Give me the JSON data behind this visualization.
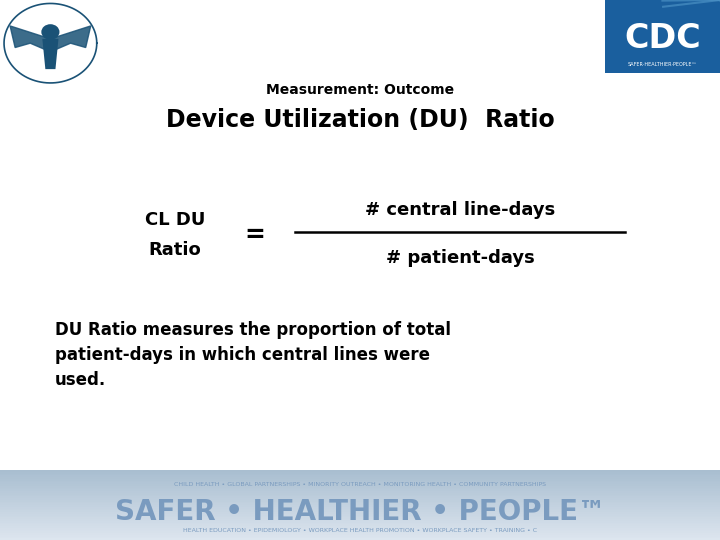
{
  "bg_color": "#ffffff",
  "footer_bg_top": "#dde6ef",
  "footer_bg_bot": "#a8bdd0",
  "footer_text": "SAFER • HEALTHIER • PEOPLE™",
  "footer_text_color": "#7a9bbf",
  "footer_subtext": "CHILD HEALTH • GLOBAL PARTNERSHIPS • MINORITY OUTREACH • MONITORING HEALTH • COMMUNITY PARTNERSHIPS",
  "subtitle": "Measurement: Outcome",
  "title": "Device Utilization (DU)  Ratio",
  "subtitle_fontsize": 10,
  "title_fontsize": 17,
  "lhs_label_line1": "CL DU",
  "lhs_label_line2": "Ratio",
  "equals_sign": "=",
  "numerator": "# central line-days",
  "denominator": "# patient-days",
  "formula_fontsize": 13,
  "description_line1": "DU Ratio measures the proportion of total",
  "description_line2": "patient-days in which central lines were",
  "description_line3": "used.",
  "description_fontsize": 12,
  "text_color": "#000000",
  "hhs_eagle_color": "#1a5276",
  "cdc_bg_color": "#1a5276",
  "cdc_text_color": "#ffffff"
}
